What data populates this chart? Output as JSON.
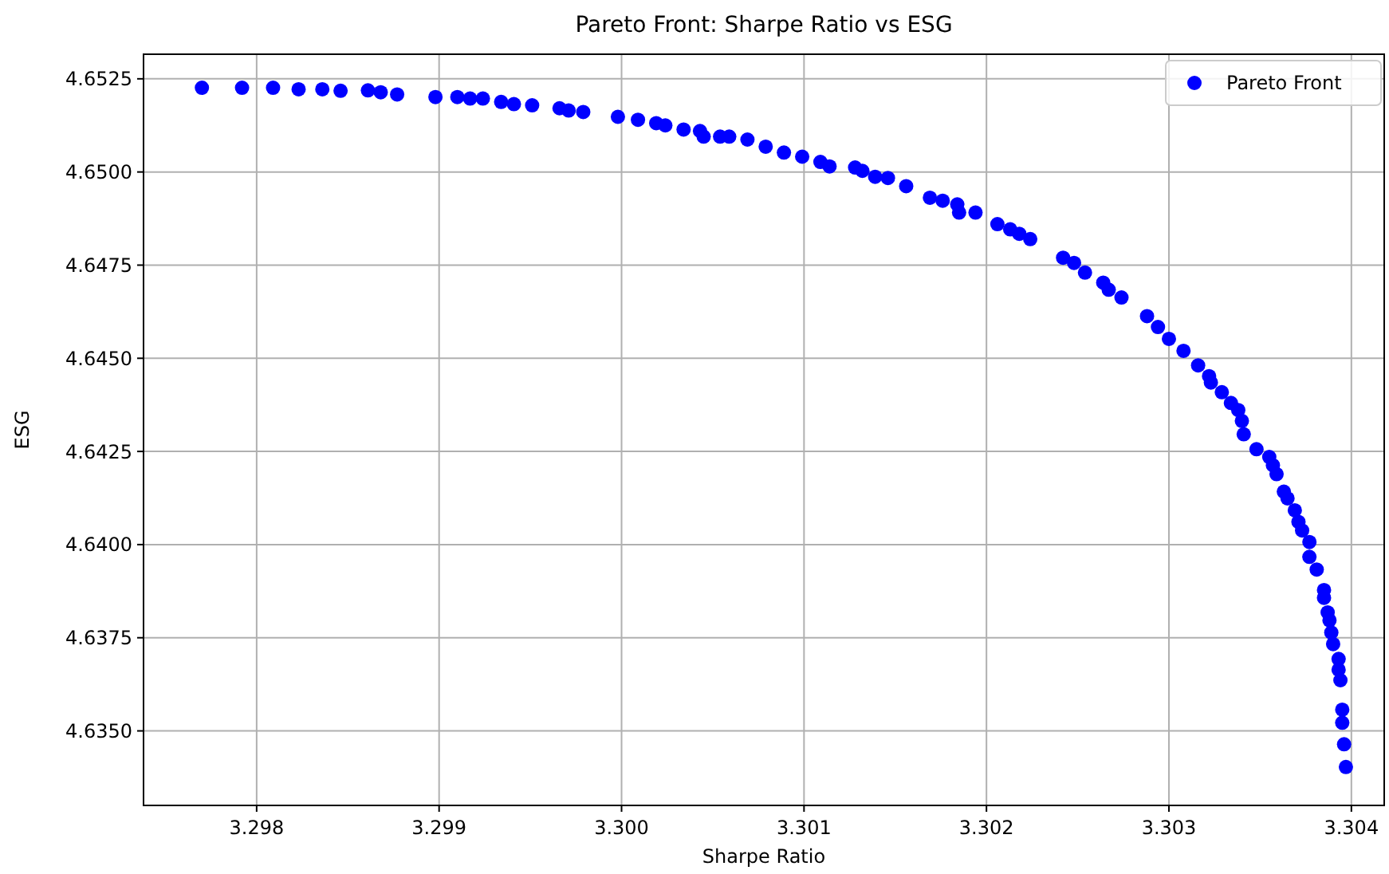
{
  "chart_data": {
    "type": "scatter",
    "title": "Pareto Front: Sharpe Ratio vs ESG",
    "xlabel": "Sharpe Ratio",
    "ylabel": "ESG",
    "xlim": [
      3.29738,
      3.30418
    ],
    "ylim": [
      4.633,
      4.65316
    ],
    "xticks": [
      3.298,
      3.299,
      {
        "value": 3.3,
        "label": "3.300"
      },
      3.301,
      3.302,
      3.303,
      3.304
    ],
    "yticks": [
      {
        "value": 4.635,
        "label": "4.6350"
      },
      {
        "value": 4.6375,
        "label": "4.6375"
      },
      {
        "value": 4.64,
        "label": "4.6400"
      },
      {
        "value": 4.6425,
        "label": "4.6425"
      },
      {
        "value": 4.645,
        "label": "4.6450"
      },
      {
        "value": 4.6475,
        "label": "4.6475"
      },
      {
        "value": 4.65,
        "label": "4.6500"
      },
      {
        "value": 4.6525,
        "label": "4.6525"
      }
    ],
    "grid": true,
    "legend": "top right",
    "marker": "circle",
    "x": [
      3.2977,
      3.29792,
      3.29809,
      3.29823,
      3.29836,
      3.29846,
      3.29861,
      3.29868,
      3.29877,
      3.29898,
      3.2991,
      3.29917,
      3.29924,
      3.29934,
      3.29941,
      3.29951,
      3.29966,
      3.29971,
      3.29979,
      3.29998,
      3.30009,
      3.30019,
      3.30024,
      3.30034,
      3.30043,
      3.30045,
      3.30054,
      3.30059,
      3.30069,
      3.30079,
      3.30089,
      3.30099,
      3.30109,
      3.30114,
      3.30128,
      3.30132,
      3.30139,
      3.30146,
      3.30156,
      3.30169,
      3.30176,
      3.30184,
      3.30185,
      3.30194,
      3.30206,
      3.30213,
      3.30218,
      3.30224,
      3.30242,
      3.30248,
      3.30254,
      3.30264,
      3.30267,
      3.30274,
      3.30288,
      3.30294,
      3.303,
      3.30308,
      3.30316,
      3.30322,
      3.30323,
      3.30329,
      3.30334,
      3.30338,
      3.3034,
      3.30341,
      3.30348,
      3.30355,
      3.30357,
      3.30359,
      3.30363,
      3.30365,
      3.30369,
      3.30371,
      3.30373,
      3.30377,
      3.30377,
      3.30381,
      3.30385,
      3.30385,
      3.30387,
      3.30388,
      3.30389,
      3.3039,
      3.30393,
      3.30393,
      3.30394,
      3.30395,
      3.30395,
      3.30396,
      3.30397
    ],
    "series": [
      {
        "name": "Pareto Front",
        "color": "#0000ff",
        "values": [
          4.65226,
          4.65226,
          4.65226,
          4.65222,
          4.65222,
          4.65218,
          4.65219,
          4.65214,
          4.65208,
          4.65201,
          4.65201,
          4.65197,
          4.65197,
          4.65188,
          4.65182,
          4.65179,
          4.65171,
          4.65165,
          4.65161,
          4.65148,
          4.6514,
          4.65131,
          4.65125,
          4.65114,
          4.6511,
          4.65095,
          4.65095,
          4.65095,
          4.65087,
          4.65068,
          4.65052,
          4.65041,
          4.65027,
          4.65015,
          4.65012,
          4.65003,
          4.64987,
          4.64984,
          4.64962,
          4.64931,
          4.64923,
          4.64913,
          4.64891,
          4.64891,
          4.6486,
          4.64846,
          4.64834,
          4.6482,
          4.6477,
          4.64756,
          4.6473,
          4.64703,
          4.64684,
          4.64663,
          4.64613,
          4.64584,
          4.64552,
          4.6452,
          4.64481,
          4.64452,
          4.64435,
          4.64409,
          4.6438,
          4.64361,
          4.64332,
          4.64296,
          4.64256,
          4.64235,
          4.64213,
          4.64189,
          4.64142,
          4.64124,
          4.64092,
          4.64061,
          4.64038,
          4.64007,
          4.63967,
          4.63933,
          4.63878,
          4.63857,
          4.63818,
          4.63797,
          4.63764,
          4.63733,
          4.63693,
          4.63664,
          4.63636,
          4.63557,
          4.63522,
          4.63464,
          4.63403
        ]
      }
    ]
  }
}
